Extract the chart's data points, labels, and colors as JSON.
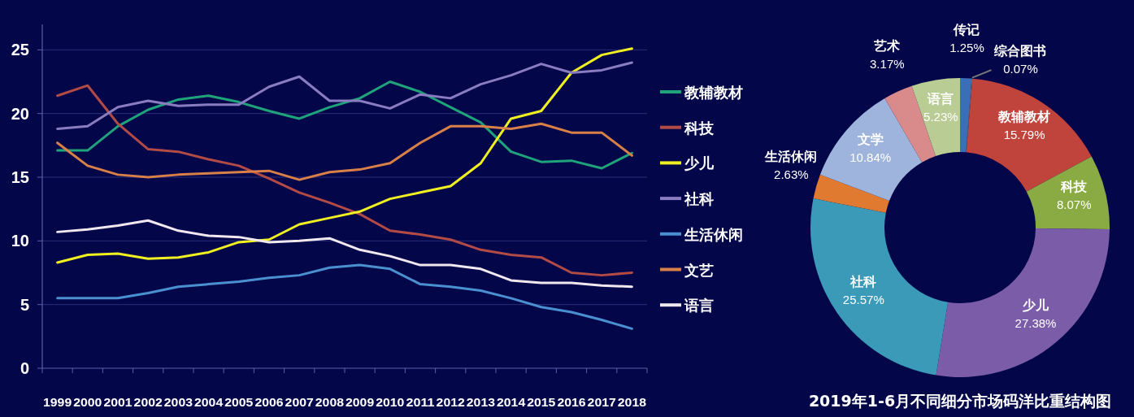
{
  "chart_data": [
    {
      "type": "line",
      "categories": [
        "1999",
        "2000",
        "2001",
        "2002",
        "2003",
        "2004",
        "2005",
        "2006",
        "2007",
        "2008",
        "2009",
        "2010",
        "2011",
        "2012",
        "2013",
        "2014",
        "2015",
        "2016",
        "2017",
        "2018"
      ],
      "ylim": [
        0,
        27
      ],
      "yticks": [
        0,
        5,
        10,
        15,
        20,
        25
      ],
      "grid": "y",
      "legend": "right",
      "marker": "none",
      "series": [
        {
          "name": "教辅教材",
          "color": "#1fa37a",
          "values": [
            17.1,
            17.1,
            19,
            20.3,
            21.1,
            21.4,
            20.9,
            20.2,
            19.6,
            20.5,
            21.2,
            22.5,
            21.7,
            20.5,
            19.3,
            17,
            16.2,
            16.3,
            15.7,
            16.9
          ]
        },
        {
          "name": "科技",
          "color": "#b24a45",
          "values": [
            21.4,
            22.2,
            19.2,
            17.2,
            17.0,
            16.4,
            15.9,
            14.9,
            13.8,
            13.0,
            12.1,
            10.8,
            10.5,
            10.1,
            9.3,
            8.9,
            8.7,
            7.5,
            7.3,
            7.5
          ]
        },
        {
          "name": "少儿",
          "color": "#f0f020",
          "values": [
            8.3,
            8.9,
            9.0,
            8.6,
            8.7,
            9.1,
            9.9,
            10.1,
            11.3,
            11.8,
            12.3,
            13.3,
            13.8,
            14.3,
            16.1,
            19.6,
            20.2,
            23.2,
            24.6,
            25.1
          ]
        },
        {
          "name": "社科",
          "color": "#8a7cc0",
          "values": [
            18.8,
            19.0,
            20.5,
            21.0,
            20.6,
            20.7,
            20.7,
            22.1,
            22.9,
            21.0,
            21.0,
            20.4,
            21.5,
            21.2,
            22.3,
            23.0,
            23.9,
            23.2,
            23.4,
            24.0
          ]
        },
        {
          "name": "生活休闲",
          "color": "#4a90d0",
          "values": [
            5.5,
            5.5,
            5.5,
            5.9,
            6.4,
            6.6,
            6.8,
            7.1,
            7.3,
            7.9,
            8.1,
            7.8,
            6.6,
            6.4,
            6.1,
            5.5,
            4.8,
            4.4,
            3.8,
            3.1
          ]
        },
        {
          "name": "文艺",
          "color": "#d98048",
          "values": [
            17.7,
            15.9,
            15.2,
            15.0,
            15.2,
            15.3,
            15.4,
            15.5,
            14.8,
            15.4,
            15.6,
            16.1,
            17.7,
            19.0,
            19.0,
            18.8,
            19.2,
            18.5,
            18.5,
            16.7
          ]
        },
        {
          "name": "语言",
          "color": "#f0e8ee",
          "values": [
            10.7,
            10.9,
            11.2,
            11.6,
            10.8,
            10.4,
            10.3,
            9.9,
            10.0,
            10.2,
            9.3,
            8.8,
            8.1,
            8.1,
            7.8,
            6.9,
            6.7,
            6.7,
            6.5,
            6.4
          ]
        }
      ]
    },
    {
      "type": "donut",
      "title": "2019年1-6月不同细分市场码洋比重结构图",
      "categories": [
        "传记",
        "综合图书",
        "教辅教材",
        "科技",
        "少儿",
        "社科",
        "生活休闲",
        "文学",
        "艺术",
        "语言"
      ],
      "values": [
        1.25,
        0.07,
        15.79,
        8.07,
        27.38,
        25.57,
        2.63,
        10.84,
        3.17,
        5.23
      ],
      "value_labels": [
        "1.25%",
        "0.07%",
        "15.79%",
        "8.07%",
        "27.38%",
        "25.57%",
        "2.63%",
        "10.84%",
        "3.17%",
        "5.23%"
      ],
      "colors": [
        "#3a6fb8",
        "#7a7a7a",
        "#c0443c",
        "#8aab44",
        "#7a5ca8",
        "#3a9ab8",
        "#e07a30",
        "#9fb4dc",
        "#d98a8a",
        "#b8cc94"
      ]
    }
  ]
}
